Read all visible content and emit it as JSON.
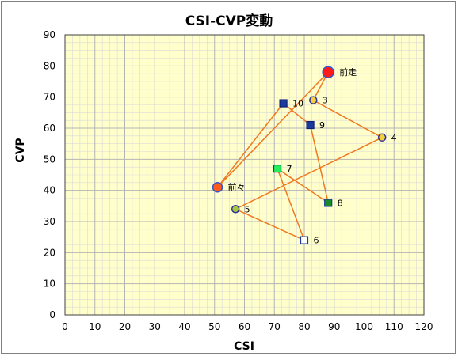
{
  "chart_data": {
    "type": "scatter",
    "title": "CSI-CVP変動",
    "xlabel": "CSI",
    "ylabel": "CVP",
    "xlim": [
      0,
      120
    ],
    "ylim": [
      0,
      90
    ],
    "xticks": [
      0,
      10,
      20,
      30,
      40,
      50,
      60,
      70,
      80,
      90,
      100,
      110,
      120
    ],
    "yticks": [
      0,
      10,
      20,
      30,
      40,
      50,
      60,
      70,
      80,
      90
    ],
    "grid": true,
    "minor_grid": true,
    "line_order": [
      "前々",
      "前走",
      "3",
      "4",
      "5",
      "6",
      "7",
      "8",
      "9",
      "10",
      "前々"
    ],
    "points": [
      {
        "label": "前走",
        "x": 88,
        "y": 78,
        "marker": "circle",
        "fill": "#ff1a1a",
        "stroke": "#3355cc",
        "size": "large"
      },
      {
        "label": "前々",
        "x": 51,
        "y": 41,
        "marker": "circle",
        "fill": "#ff5a1a",
        "stroke": "#3355cc",
        "size": "medium"
      },
      {
        "label": "3",
        "x": 83,
        "y": 69,
        "marker": "circle",
        "fill": "#f3d03c",
        "stroke": "#333399",
        "size": "small"
      },
      {
        "label": "4",
        "x": 106,
        "y": 57,
        "marker": "circle",
        "fill": "#f3d03c",
        "stroke": "#333399",
        "size": "small"
      },
      {
        "label": "5",
        "x": 57,
        "y": 34,
        "marker": "circle",
        "fill": "#a5c83c",
        "stroke": "#333399",
        "size": "small"
      },
      {
        "label": "6",
        "x": 80,
        "y": 24,
        "marker": "square",
        "fill": "#ffffff",
        "stroke": "#1a3aa0",
        "size": "small"
      },
      {
        "label": "7",
        "x": 71,
        "y": 47,
        "marker": "square",
        "fill": "#22ee55",
        "stroke": "#1a3aa0",
        "size": "small"
      },
      {
        "label": "8",
        "x": 88,
        "y": 36,
        "marker": "square",
        "fill": "#1a8a2a",
        "stroke": "#1a3aa0",
        "size": "small"
      },
      {
        "label": "9",
        "x": 82,
        "y": 61,
        "marker": "square",
        "fill": "#1a3aa0",
        "stroke": "#102070",
        "size": "small"
      },
      {
        "label": "10",
        "x": 73,
        "y": 68,
        "marker": "square",
        "fill": "#1a3aa0",
        "stroke": "#102070",
        "size": "small"
      }
    ]
  },
  "colors": {
    "plot_background": "#ffffcc",
    "grid_major": "#b4b4b4",
    "grid_minor": "#d9d9d9",
    "connector_line": "#f07820",
    "text": "#000000"
  }
}
